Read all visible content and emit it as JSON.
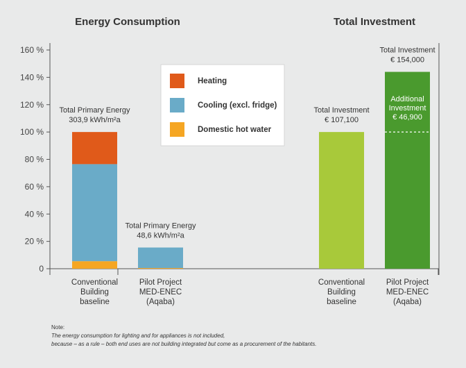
{
  "chart_data": [
    {
      "type": "bar",
      "stacked": true,
      "title": "Energy Consumption",
      "categories": [
        [
          "Conventional",
          "Building",
          "baseline"
        ],
        [
          "Pilot Project",
          "MED-ENEC",
          "(Aqaba)"
        ]
      ],
      "series": [
        {
          "name": "Domestic hot water",
          "color": "#f5a623",
          "values": [
            5.5,
            0.5
          ]
        },
        {
          "name": "Cooling (excl. fridge)",
          "color": "#6aabc8",
          "values": [
            71.0,
            15.0
          ]
        },
        {
          "name": "Heating",
          "color": "#e05a1a",
          "values": [
            23.5,
            0
          ]
        }
      ],
      "annotations": [
        [
          "Total Primary Energy",
          "303,9 kWh/m²a"
        ],
        [
          "Total Primary Energy",
          "48,6 kWh/m²a"
        ]
      ],
      "ylim": [
        0,
        160
      ],
      "yticks": [
        "0",
        "20 %",
        "40 %",
        "60 %",
        "80 %",
        "100 %",
        "120 %",
        "140 %",
        "160 %"
      ],
      "legend": [
        "Heating",
        "Cooling (excl. fridge)",
        "Domestic hot water"
      ],
      "legend_position": "top-center"
    },
    {
      "type": "bar",
      "title": "Total Investment",
      "categories": [
        [
          "Conventional",
          "Building",
          "baseline"
        ],
        [
          "Pilot Project",
          "MED-ENEC",
          "(Aqaba)"
        ]
      ],
      "series": [
        {
          "name": "Total Investment",
          "colors": [
            "#a8c93a",
            "#4a9a2e"
          ],
          "values": [
            100,
            144
          ]
        }
      ],
      "annotations": [
        [
          "Total Investment",
          "€ 107,100"
        ],
        [
          "Total Investment",
          "€ 154,000"
        ]
      ],
      "inside_label": [
        "Additional",
        "Investment",
        "€ 46,900"
      ],
      "reference_line": 100
    }
  ],
  "note": {
    "label": "Note:",
    "line1": "The energy consumption for lighting and for appliances is not included,",
    "line2": "because – as a rule – both end uses are not building integrated but come as a procurement of the habitants."
  }
}
